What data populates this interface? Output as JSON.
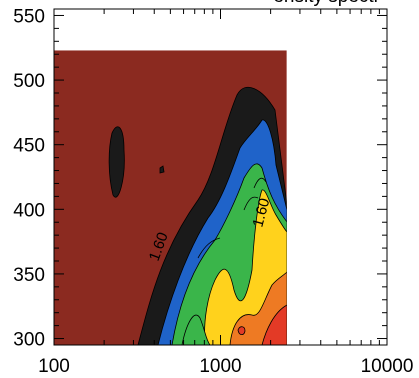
{
  "chart_data": {
    "type": "contour",
    "title": "...ensity spectr...",
    "xlabel": "",
    "ylabel": "",
    "x_scale": "log",
    "xlim": [
      100,
      10000
    ],
    "ylim": [
      295,
      555
    ],
    "x_tick_labels": [
      "100",
      "1000",
      "10000"
    ],
    "y_tick_labels": [
      "300",
      "350",
      "400",
      "450",
      "500",
      "550"
    ],
    "data_extent": {
      "x": [
        100,
        2500
      ],
      "y": [
        295,
        523
      ]
    },
    "contour_labels": [
      "1.60",
      "1.60"
    ],
    "colors": {
      "background_level": "#8b2a20",
      "black_level": "#1a1a1a",
      "blue_level": "#1f63c9",
      "green_level": "#3ab54a",
      "yellow_level": "#ffd21c",
      "orange_level": "#ee7a23",
      "red_level": "#e33a26"
    }
  }
}
